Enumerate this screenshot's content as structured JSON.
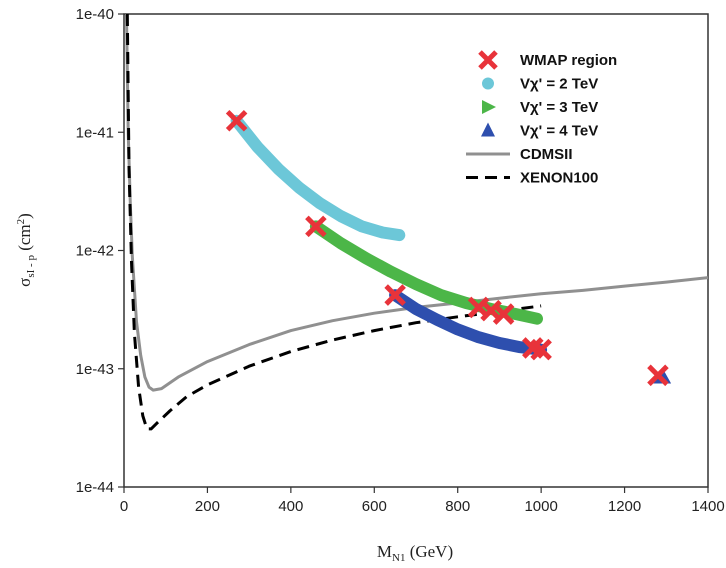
{
  "chart_data": {
    "type": "scatter",
    "title": "",
    "xlabel": "M",
    "xlabel_sub": "N1",
    "xlabel_unit": " (GeV)",
    "ylabel": "σ",
    "ylabel_sub": "sI - p",
    "ylabel_unit": " (cm",
    "ylabel_sup": "2",
    "ylabel_close": ")",
    "xlim": [
      0,
      1400
    ],
    "ylim": [
      1e-44,
      1e-40
    ],
    "yscale": "log",
    "grid": false,
    "legend_position": "top-right",
    "x_ticks": [
      "0",
      "200",
      "400",
      "600",
      "800",
      "1000",
      "1200",
      "1400"
    ],
    "x_tick_values": [
      0,
      200,
      400,
      600,
      800,
      1000,
      1200,
      1400
    ],
    "y_ticks": [
      "1e-44",
      "1e-43",
      "1e-42",
      "1e-41",
      "1e-40"
    ],
    "y_tick_values": [
      1e-44,
      1e-43,
      1e-42,
      1e-41,
      1e-40
    ],
    "colors": {
      "wmap": "#e8333a",
      "v2": "#6cc7d8",
      "v3": "#4cb648",
      "v4": "#2e4fae",
      "cdms": "#909090",
      "xenon": "#000000"
    },
    "series": [
      {
        "name": "Vχ' = 2 TeV",
        "kind": "thick-curve",
        "x": [
          270,
          320,
          370,
          420,
          470,
          520,
          570,
          620,
          660
        ],
        "y": [
          1.25e-41,
          7.5e-42,
          4.9e-42,
          3.4e-42,
          2.5e-42,
          1.95e-42,
          1.6e-42,
          1.42e-42,
          1.35e-42
        ]
      },
      {
        "name": "Vχ' = 3 TeV",
        "kind": "thick-curve",
        "x": [
          460,
          520,
          580,
          640,
          700,
          760,
          820,
          880,
          940,
          990
        ],
        "y": [
          1.6e-42,
          1.15e-42,
          8.6e-43,
          6.6e-43,
          5.2e-43,
          4.2e-43,
          3.6e-43,
          3.2e-43,
          2.9e-43,
          2.65e-43
        ]
      },
      {
        "name": "Vχ' = 4 TeV",
        "kind": "thick-curve",
        "x": [
          650,
          700,
          750,
          800,
          850,
          900,
          950,
          1000
        ],
        "y": [
          4.2e-43,
          3.2e-43,
          2.6e-43,
          2.15e-43,
          1.85e-43,
          1.65e-43,
          1.52e-43,
          1.45e-43
        ]
      },
      {
        "name": "Vχ' = 4 TeV",
        "kind": "triangle",
        "x": [
          1290
        ],
        "y": [
          8.6e-44
        ]
      },
      {
        "name": "WMAP region",
        "kind": "cross",
        "x": [
          270,
          460,
          650,
          850,
          880,
          910,
          980,
          1000,
          1280
        ],
        "y": [
          1.25e-41,
          1.6e-42,
          4.2e-43,
          3.3e-43,
          3.1e-43,
          2.9e-43,
          1.5e-43,
          1.45e-43,
          8.8e-44
        ]
      },
      {
        "name": "CDMSII",
        "kind": "line",
        "x": [
          6,
          10,
          15,
          20,
          30,
          40,
          50,
          60,
          70,
          90,
          130,
          200,
          300,
          400,
          500,
          600,
          700,
          800,
          900,
          1000,
          1100,
          1200,
          1300,
          1400
        ],
        "y": [
          1e-40,
          1e-41,
          2.5e-42,
          9e-43,
          2.5e-43,
          1.3e-43,
          8.5e-44,
          7e-44,
          6.6e-44,
          6.8e-44,
          8.5e-44,
          1.15e-43,
          1.6e-43,
          2.1e-43,
          2.55e-43,
          2.95e-43,
          3.3e-43,
          3.6e-43,
          3.95e-43,
          4.3e-43,
          4.6e-43,
          5e-43,
          5.4e-43,
          5.9e-43
        ]
      },
      {
        "name": "XENON100",
        "kind": "dashed-line",
        "x": [
          8,
          12,
          18,
          25,
          35,
          45,
          55,
          65,
          80,
          110,
          150,
          200,
          300,
          400,
          500,
          600,
          700,
          800,
          900,
          1000
        ],
        "y": [
          1e-40,
          5e-42,
          8e-43,
          2e-43,
          7e-44,
          4e-44,
          3.1e-44,
          3.1e-44,
          3.5e-44,
          4.4e-44,
          5.8e-44,
          7.3e-44,
          1.05e-43,
          1.4e-43,
          1.75e-43,
          2.1e-43,
          2.45e-43,
          2.75e-43,
          3.05e-43,
          3.4e-43
        ]
      }
    ],
    "legend": [
      {
        "label": "WMAP region",
        "marker": "cross",
        "color_key": "wmap"
      },
      {
        "label": "Vχ' = 2 TeV",
        "marker": "circle",
        "color_key": "v2"
      },
      {
        "label": "Vχ' = 3 TeV",
        "marker": "triangle-right",
        "color_key": "v3"
      },
      {
        "label": "Vχ' = 4 TeV",
        "marker": "triangle-up",
        "color_key": "v4"
      },
      {
        "label": "CDMSII",
        "marker": "line",
        "color_key": "cdms"
      },
      {
        "label": "XENON100",
        "marker": "dashed",
        "color_key": "xenon"
      }
    ]
  }
}
